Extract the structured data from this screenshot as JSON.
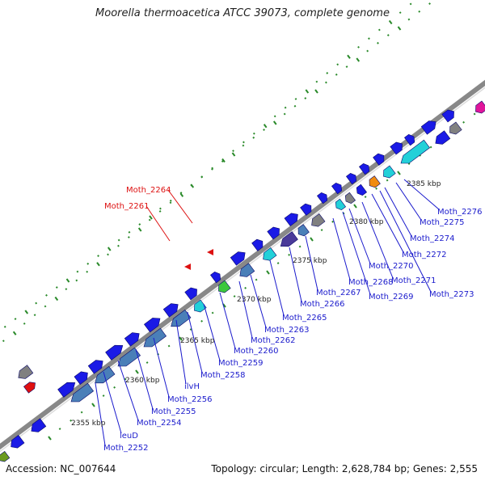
{
  "title": "Moorella thermoacetica ATCC 39073, complete genome",
  "footer": {
    "accession": "Accession: NC_007644",
    "summary": "Topology: circular; Length: 2,628,784 bp; Genes: 2,555"
  },
  "kbp_marks": [
    "2355 kbp",
    "2360 kbp",
    "2365 kbp",
    "2370 kbp",
    "2375 kbp",
    "2380 kbp",
    "2385 kbp"
  ],
  "red_labels": [
    "Moth_2264",
    "Moth_2261"
  ],
  "blue_labels": [
    "Moth_2276",
    "Moth_2275",
    "Moth_2274",
    "Moth_2272",
    "Moth_2270",
    "Moth_2271",
    "Moth_2273",
    "Moth_2268",
    "Moth_2269",
    "Moth_2267",
    "Moth_2266",
    "Moth_2265",
    "Moth_2263",
    "Moth_2262",
    "Moth_2260",
    "Moth_2259",
    "Moth_2258",
    "ilvH",
    "Moth_2256",
    "Moth_2255",
    "Moth_2254",
    "leuD",
    "Moth_2252"
  ],
  "colors": {
    "forward_gene": "#1a1ae6",
    "reverse_gene": "#4a7fb8",
    "label_blue": "#1a1acc",
    "label_red": "#dd1111",
    "backbone": "#888888",
    "tick": "#2a8a2a",
    "cyan": "#22d0d8",
    "orange": "#f08c10",
    "purple": "#4a3a9a",
    "green": "#3cc83c",
    "magenta": "#e0169a",
    "gray": "#808080",
    "olive": "#6a9a20"
  }
}
